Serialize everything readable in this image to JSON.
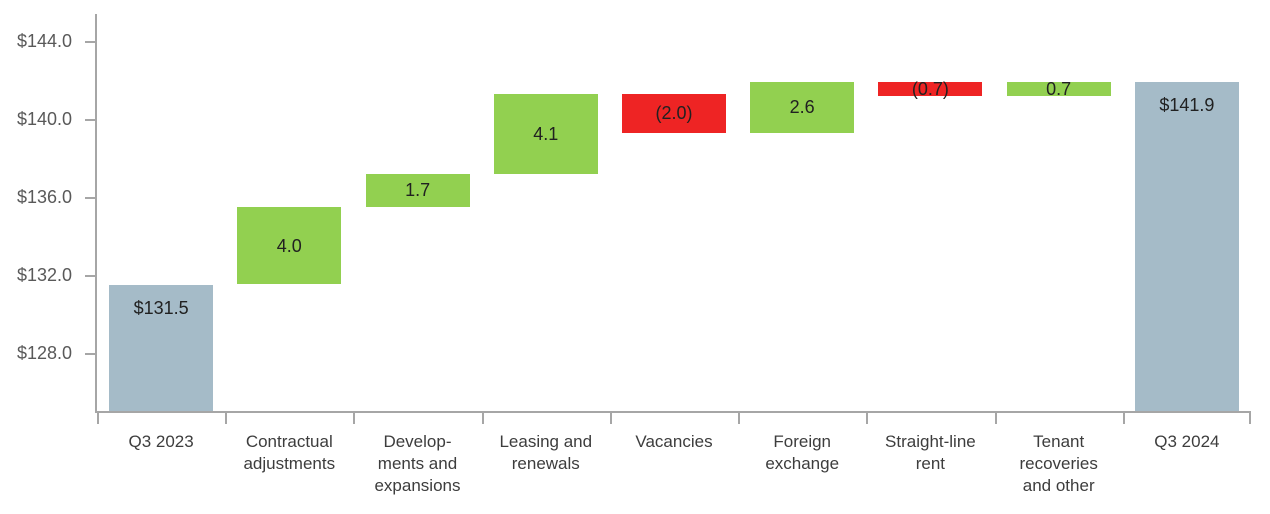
{
  "chart_data": {
    "type": "bar",
    "subtype": "waterfall",
    "title": "",
    "xlabel": "",
    "ylabel": "",
    "grid": false,
    "legend": "none",
    "ylim": [
      125,
      145.4
    ],
    "bars": [
      {
        "category": "Q3 2023",
        "label_lines": [
          "Q3 2023"
        ],
        "kind": "total",
        "value": 131.5,
        "display": "$131.5"
      },
      {
        "category": "Contractual adjustments",
        "label_lines": [
          "Contractual",
          "adjustments"
        ],
        "kind": "increase",
        "value": 4.0,
        "display": "4.0"
      },
      {
        "category": "Developments and expansions",
        "label_lines": [
          "Develop-",
          "ments and",
          "expansions"
        ],
        "kind": "increase",
        "value": 1.7,
        "display": "1.7"
      },
      {
        "category": "Leasing and renewals",
        "label_lines": [
          "Leasing and",
          "renewals"
        ],
        "kind": "increase",
        "value": 4.1,
        "display": "4.1"
      },
      {
        "category": "Vacancies",
        "label_lines": [
          "Vacancies"
        ],
        "kind": "decrease",
        "value": 2.0,
        "display": "(2.0)"
      },
      {
        "category": "Foreign exchange",
        "label_lines": [
          "Foreign",
          "exchange"
        ],
        "kind": "increase",
        "value": 2.6,
        "display": "2.6"
      },
      {
        "category": "Straight-line rent",
        "label_lines": [
          "Straight-line",
          "rent"
        ],
        "kind": "decrease",
        "value": 0.7,
        "display": "(0.7)"
      },
      {
        "category": "Tenant recoveries and other",
        "label_lines": [
          "Tenant",
          "recoveries",
          "and other"
        ],
        "kind": "increase",
        "value": 0.7,
        "display": "0.7"
      },
      {
        "category": "Q3 2024",
        "label_lines": [
          "Q3 2024"
        ],
        "kind": "total",
        "value": 141.9,
        "display": "$141.9"
      }
    ],
    "y_axis": {
      "min": 125,
      "max": 145.4,
      "ticks": [
        {
          "value": 144.0,
          "display": "$144.0"
        },
        {
          "value": 140.0,
          "display": "$140.0"
        },
        {
          "value": 136.0,
          "display": "$136.0"
        },
        {
          "value": 132.0,
          "display": "$132.0"
        },
        {
          "value": 128.0,
          "display": "$128.0"
        }
      ]
    },
    "colors": {
      "total_bar": "#a5bbc8",
      "increase_bar": "#92d050",
      "decrease_bar": "#ee2424",
      "axis": "#a6a6a6",
      "y_tick_label": "#595959",
      "x_category_label": "#3d3d3d",
      "bar_value_label": "#212121"
    }
  }
}
